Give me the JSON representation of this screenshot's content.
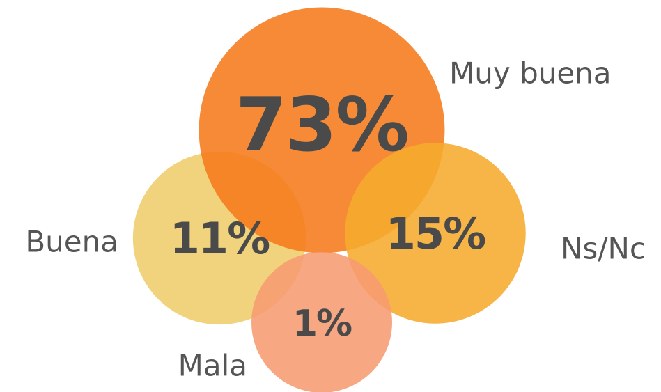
{
  "chart_data": {
    "type": "bubble",
    "categories": [
      "Muy buena",
      "Buena",
      "Ns/Nc",
      "Mala"
    ],
    "values": [
      73,
      11,
      15,
      1
    ],
    "value_labels": [
      "73%",
      "11%",
      "15%",
      "1%"
    ],
    "colors": [
      "#f57a1a",
      "#efcd6b",
      "#f6ab2e",
      "#f79b72"
    ]
  }
}
